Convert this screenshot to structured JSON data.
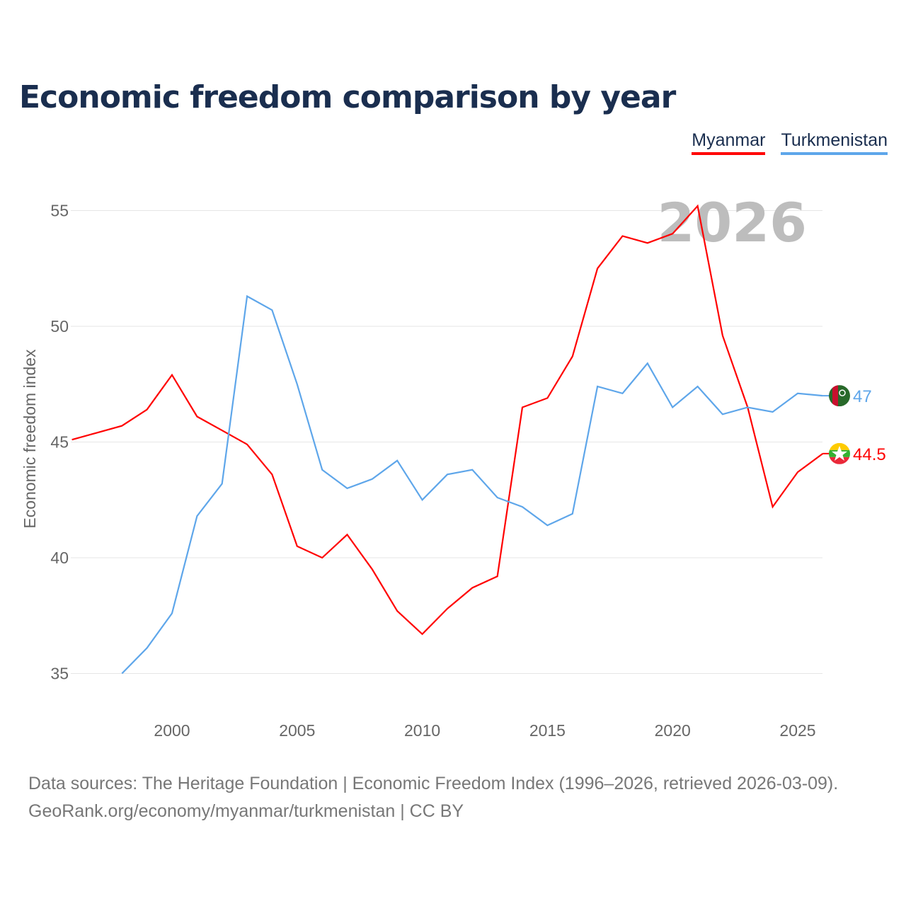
{
  "title": "Economic freedom comparison by year",
  "source_line1": "Data sources: The Heritage Foundation | Economic Freedom Index (1996–2026, retrieved 2026-03-09).",
  "source_line2": "GeoRank.org/economy/myanmar/turkmenistan | CC BY",
  "chart_data": {
    "type": "line",
    "title": "Economic freedom comparison by year",
    "ylabel": "Economic freedom index",
    "xlabel": "",
    "xlim": [
      1996,
      2026
    ],
    "ylim": [
      33.5,
      56.5
    ],
    "yticks": [
      35,
      40,
      45,
      50,
      55
    ],
    "xticks": [
      2000,
      2005,
      2010,
      2015,
      2020,
      2025
    ],
    "year_watermark": "2026",
    "legend_position": "top-right",
    "series": [
      {
        "name": "Myanmar",
        "color": "#ff0000",
        "end_label": "44.5",
        "x": [
          1996,
          1997,
          1998,
          1999,
          2000,
          2001,
          2002,
          2003,
          2004,
          2005,
          2006,
          2007,
          2008,
          2009,
          2010,
          2011,
          2012,
          2013,
          2014,
          2015,
          2016,
          2017,
          2018,
          2019,
          2020,
          2021,
          2022,
          2023,
          2024,
          2025,
          2026
        ],
        "values": [
          45.1,
          45.4,
          45.7,
          46.4,
          47.9,
          46.1,
          45.5,
          44.9,
          43.6,
          40.5,
          40.0,
          41.0,
          39.5,
          37.7,
          36.7,
          37.8,
          38.7,
          39.2,
          46.5,
          46.9,
          48.7,
          52.5,
          53.9,
          53.6,
          54.0,
          55.2,
          49.6,
          46.5,
          42.2,
          43.7,
          44.5
        ]
      },
      {
        "name": "Turkmenistan",
        "color": "#5ea6ea",
        "end_label": "47",
        "x": [
          1998,
          1999,
          2000,
          2001,
          2002,
          2003,
          2004,
          2005,
          2006,
          2007,
          2008,
          2009,
          2010,
          2011,
          2012,
          2013,
          2014,
          2015,
          2016,
          2017,
          2018,
          2019,
          2020,
          2021,
          2022,
          2023,
          2024,
          2025,
          2026
        ],
        "values": [
          35.0,
          36.1,
          37.6,
          41.8,
          43.2,
          51.3,
          50.7,
          47.5,
          43.8,
          43.0,
          43.4,
          44.2,
          42.5,
          43.6,
          43.8,
          42.6,
          42.2,
          41.4,
          41.9,
          47.4,
          47.1,
          48.4,
          46.5,
          47.4,
          46.2,
          46.5,
          46.3,
          47.1,
          47.0
        ]
      }
    ]
  }
}
